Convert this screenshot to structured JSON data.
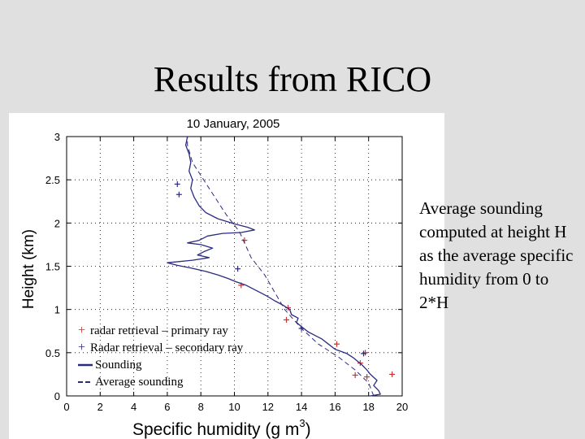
{
  "slide": {
    "title": "Results from RICO",
    "side_note": "Average sounding computed at height H as the average specific humidity from 0 to 2*H"
  },
  "chart_data": {
    "type": "scatter",
    "title": "10 January, 2005",
    "xlabel": "Specific humidity (g m",
    "xlabel_sup": "3",
    "xlabel_close": ")",
    "ylabel": "Height (km)",
    "xlim": [
      0,
      20
    ],
    "ylim": [
      0,
      3
    ],
    "grid": true,
    "x_ticks": [
      0,
      2,
      4,
      6,
      8,
      10,
      12,
      14,
      16,
      18,
      20
    ],
    "y_ticks": [
      0,
      0.5,
      1,
      1.5,
      2,
      2.5,
      3
    ],
    "x_tick_labels": [
      "0",
      "2",
      "4",
      "6",
      "8",
      "10",
      "12",
      "14",
      "16",
      "18",
      "20"
    ],
    "y_tick_labels": [
      "0",
      "0.5",
      "1",
      "1.5",
      "2",
      "2.5",
      "3"
    ],
    "legend_position": "bottom-left",
    "legend": [
      {
        "label": "radar retrieval – primary ray",
        "marker": "+",
        "color": "#cc3333"
      },
      {
        "label": "Radar retrieval – secondary ray",
        "marker": "+",
        "color": "#2a2a80"
      },
      {
        "label": "Sounding",
        "style": "solid",
        "color": "#2a2a80"
      },
      {
        "label": "Average sounding",
        "style": "dashed",
        "color": "#2a2a80"
      }
    ],
    "series": [
      {
        "name": "radar retrieval – primary ray",
        "kind": "markers",
        "color": "#cc3333",
        "points": [
          {
            "x": 10.6,
            "y": 1.8
          },
          {
            "x": 10.4,
            "y": 1.28
          },
          {
            "x": 13.2,
            "y": 1.02
          },
          {
            "x": 13.1,
            "y": 0.88
          },
          {
            "x": 16.1,
            "y": 0.6
          },
          {
            "x": 17.8,
            "y": 0.5
          },
          {
            "x": 17.5,
            "y": 0.38
          },
          {
            "x": 17.2,
            "y": 0.24
          },
          {
            "x": 17.9,
            "y": 0.22
          },
          {
            "x": 19.4,
            "y": 0.25
          }
        ]
      },
      {
        "name": "Radar retrieval – secondary ray",
        "kind": "markers",
        "color": "#2a2a80",
        "points": [
          {
            "x": 6.6,
            "y": 2.45
          },
          {
            "x": 6.7,
            "y": 2.33
          },
          {
            "x": 10.2,
            "y": 1.47
          },
          {
            "x": 17.7,
            "y": 0.49
          },
          {
            "x": 14.0,
            "y": 0.78
          }
        ]
      },
      {
        "name": "Sounding",
        "kind": "line",
        "color": "#2a2a80",
        "points": [
          {
            "x": 18.1,
            "y": 0.0
          },
          {
            "x": 18.7,
            "y": 0.02
          },
          {
            "x": 18.6,
            "y": 0.06
          },
          {
            "x": 18.3,
            "y": 0.12
          },
          {
            "x": 18.5,
            "y": 0.18
          },
          {
            "x": 18.1,
            "y": 0.25
          },
          {
            "x": 17.9,
            "y": 0.3
          },
          {
            "x": 17.6,
            "y": 0.36
          },
          {
            "x": 17.1,
            "y": 0.44
          },
          {
            "x": 16.7,
            "y": 0.49
          },
          {
            "x": 16.0,
            "y": 0.54
          },
          {
            "x": 15.6,
            "y": 0.6
          },
          {
            "x": 15.2,
            "y": 0.66
          },
          {
            "x": 14.8,
            "y": 0.7
          },
          {
            "x": 14.4,
            "y": 0.74
          },
          {
            "x": 14.0,
            "y": 0.8
          },
          {
            "x": 13.7,
            "y": 0.85
          },
          {
            "x": 13.8,
            "y": 0.9
          },
          {
            "x": 13.4,
            "y": 0.94
          },
          {
            "x": 13.3,
            "y": 1.0
          },
          {
            "x": 12.9,
            "y": 1.05
          },
          {
            "x": 12.4,
            "y": 1.1
          },
          {
            "x": 11.9,
            "y": 1.16
          },
          {
            "x": 11.3,
            "y": 1.22
          },
          {
            "x": 10.7,
            "y": 1.28
          },
          {
            "x": 10.1,
            "y": 1.32
          },
          {
            "x": 9.6,
            "y": 1.36
          },
          {
            "x": 9.0,
            "y": 1.4
          },
          {
            "x": 8.3,
            "y": 1.44
          },
          {
            "x": 7.4,
            "y": 1.48
          },
          {
            "x": 6.6,
            "y": 1.51
          },
          {
            "x": 6.0,
            "y": 1.54
          },
          {
            "x": 7.5,
            "y": 1.57
          },
          {
            "x": 8.5,
            "y": 1.6
          },
          {
            "x": 7.8,
            "y": 1.63
          },
          {
            "x": 8.2,
            "y": 1.67
          },
          {
            "x": 8.7,
            "y": 1.71
          },
          {
            "x": 8.0,
            "y": 1.75
          },
          {
            "x": 7.2,
            "y": 1.77
          },
          {
            "x": 7.9,
            "y": 1.8
          },
          {
            "x": 8.4,
            "y": 1.85
          },
          {
            "x": 9.3,
            "y": 1.88
          },
          {
            "x": 10.4,
            "y": 1.89
          },
          {
            "x": 11.2,
            "y": 1.92
          },
          {
            "x": 10.8,
            "y": 1.95
          },
          {
            "x": 10.0,
            "y": 1.99
          },
          {
            "x": 9.0,
            "y": 2.05
          },
          {
            "x": 8.3,
            "y": 2.12
          },
          {
            "x": 7.9,
            "y": 2.2
          },
          {
            "x": 7.6,
            "y": 2.3
          },
          {
            "x": 7.4,
            "y": 2.4
          },
          {
            "x": 7.5,
            "y": 2.5
          },
          {
            "x": 7.3,
            "y": 2.6
          },
          {
            "x": 7.4,
            "y": 2.7
          },
          {
            "x": 7.3,
            "y": 2.8
          },
          {
            "x": 7.1,
            "y": 2.9
          },
          {
            "x": 7.2,
            "y": 3.0
          }
        ]
      },
      {
        "name": "Average sounding",
        "kind": "dashed-line",
        "color": "#2a2a80",
        "points": [
          {
            "x": 18.3,
            "y": 0.0
          },
          {
            "x": 18.0,
            "y": 0.15
          },
          {
            "x": 17.2,
            "y": 0.3
          },
          {
            "x": 16.2,
            "y": 0.45
          },
          {
            "x": 15.0,
            "y": 0.6
          },
          {
            "x": 14.0,
            "y": 0.78
          },
          {
            "x": 13.0,
            "y": 1.0
          },
          {
            "x": 11.8,
            "y": 1.4
          },
          {
            "x": 11.0,
            "y": 1.6
          },
          {
            "x": 10.3,
            "y": 1.9
          },
          {
            "x": 9.5,
            "y": 2.1
          },
          {
            "x": 8.5,
            "y": 2.4
          },
          {
            "x": 7.5,
            "y": 2.7
          },
          {
            "x": 7.2,
            "y": 2.9
          },
          {
            "x": 7.2,
            "y": 3.0
          }
        ]
      }
    ]
  }
}
